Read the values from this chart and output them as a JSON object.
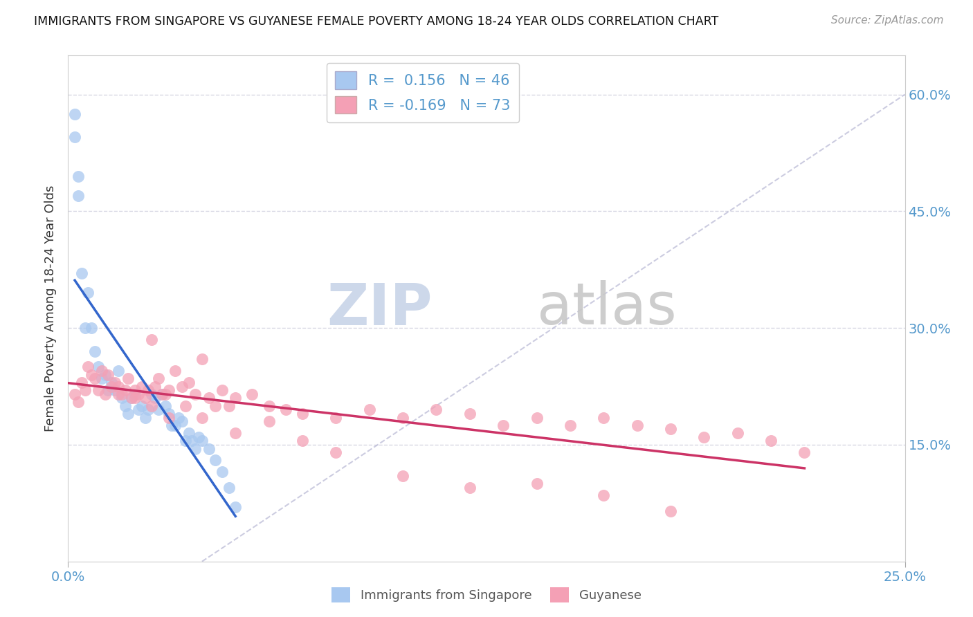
{
  "title": "IMMIGRANTS FROM SINGAPORE VS GUYANESE FEMALE POVERTY AMONG 18-24 YEAR OLDS CORRELATION CHART",
  "source": "Source: ZipAtlas.com",
  "ylabel": "Female Poverty Among 18-24 Year Olds",
  "xlim": [
    0.0,
    0.25
  ],
  "ylim": [
    0.0,
    0.65
  ],
  "ytick_vals": [
    0.0,
    0.15,
    0.3,
    0.45,
    0.6
  ],
  "ytick_labels_right": [
    "",
    "15.0%",
    "30.0%",
    "45.0%",
    "60.0%"
  ],
  "xtick_vals": [
    0.0,
    0.25
  ],
  "xtick_labels": [
    "0.0%",
    "25.0%"
  ],
  "r_blue": 0.156,
  "n_blue": 46,
  "r_pink": -0.169,
  "n_pink": 73,
  "blue_color": "#a8c8f0",
  "pink_color": "#f4a0b5",
  "line_blue": "#3366cc",
  "line_pink": "#cc3366",
  "diagonal_color": "#aaaacc",
  "tick_color": "#5599cc",
  "background_color": "#ffffff",
  "grid_color": "#ccccdd",
  "watermark_zip_color": "#c8d4e8",
  "watermark_atlas_color": "#c8c8c8",
  "blue_scatter_x": [
    0.002,
    0.002,
    0.003,
    0.003,
    0.004,
    0.005,
    0.006,
    0.007,
    0.008,
    0.009,
    0.01,
    0.011,
    0.012,
    0.013,
    0.014,
    0.015,
    0.016,
    0.017,
    0.018,
    0.019,
    0.02,
    0.021,
    0.022,
    0.023,
    0.024,
    0.025,
    0.026,
    0.027,
    0.028,
    0.029,
    0.03,
    0.031,
    0.032,
    0.033,
    0.034,
    0.035,
    0.036,
    0.037,
    0.038,
    0.039,
    0.04,
    0.042,
    0.044,
    0.046,
    0.048,
    0.05
  ],
  "blue_scatter_y": [
    0.575,
    0.545,
    0.495,
    0.47,
    0.37,
    0.3,
    0.345,
    0.3,
    0.27,
    0.25,
    0.235,
    0.24,
    0.22,
    0.23,
    0.22,
    0.245,
    0.21,
    0.2,
    0.19,
    0.21,
    0.215,
    0.195,
    0.2,
    0.185,
    0.195,
    0.215,
    0.21,
    0.195,
    0.215,
    0.2,
    0.19,
    0.175,
    0.175,
    0.185,
    0.18,
    0.155,
    0.165,
    0.155,
    0.145,
    0.16,
    0.155,
    0.145,
    0.13,
    0.115,
    0.095,
    0.07
  ],
  "pink_scatter_x": [
    0.002,
    0.003,
    0.004,
    0.005,
    0.006,
    0.007,
    0.008,
    0.009,
    0.01,
    0.011,
    0.012,
    0.013,
    0.014,
    0.015,
    0.016,
    0.017,
    0.018,
    0.019,
    0.02,
    0.021,
    0.022,
    0.023,
    0.024,
    0.025,
    0.026,
    0.027,
    0.028,
    0.029,
    0.03,
    0.032,
    0.034,
    0.036,
    0.038,
    0.04,
    0.042,
    0.044,
    0.046,
    0.048,
    0.05,
    0.055,
    0.06,
    0.065,
    0.07,
    0.08,
    0.09,
    0.1,
    0.11,
    0.12,
    0.13,
    0.14,
    0.15,
    0.16,
    0.17,
    0.18,
    0.19,
    0.2,
    0.21,
    0.22,
    0.015,
    0.02,
    0.025,
    0.03,
    0.035,
    0.04,
    0.05,
    0.06,
    0.07,
    0.08,
    0.1,
    0.12,
    0.14,
    0.16,
    0.18
  ],
  "pink_scatter_y": [
    0.215,
    0.205,
    0.23,
    0.22,
    0.25,
    0.24,
    0.235,
    0.22,
    0.245,
    0.215,
    0.24,
    0.225,
    0.23,
    0.225,
    0.215,
    0.22,
    0.235,
    0.21,
    0.22,
    0.215,
    0.225,
    0.21,
    0.22,
    0.285,
    0.225,
    0.235,
    0.215,
    0.215,
    0.22,
    0.245,
    0.225,
    0.23,
    0.215,
    0.26,
    0.21,
    0.2,
    0.22,
    0.2,
    0.21,
    0.215,
    0.2,
    0.195,
    0.19,
    0.185,
    0.195,
    0.185,
    0.195,
    0.19,
    0.175,
    0.185,
    0.175,
    0.185,
    0.175,
    0.17,
    0.16,
    0.165,
    0.155,
    0.14,
    0.215,
    0.21,
    0.2,
    0.185,
    0.2,
    0.185,
    0.165,
    0.18,
    0.155,
    0.14,
    0.11,
    0.095,
    0.1,
    0.085,
    0.065
  ],
  "legend_r_blue_text": "R =  0.156   N = 46",
  "legend_r_pink_text": "R = -0.169   N = 73",
  "legend_blue_label": "Immigrants from Singapore",
  "legend_pink_label": "Guyanese"
}
